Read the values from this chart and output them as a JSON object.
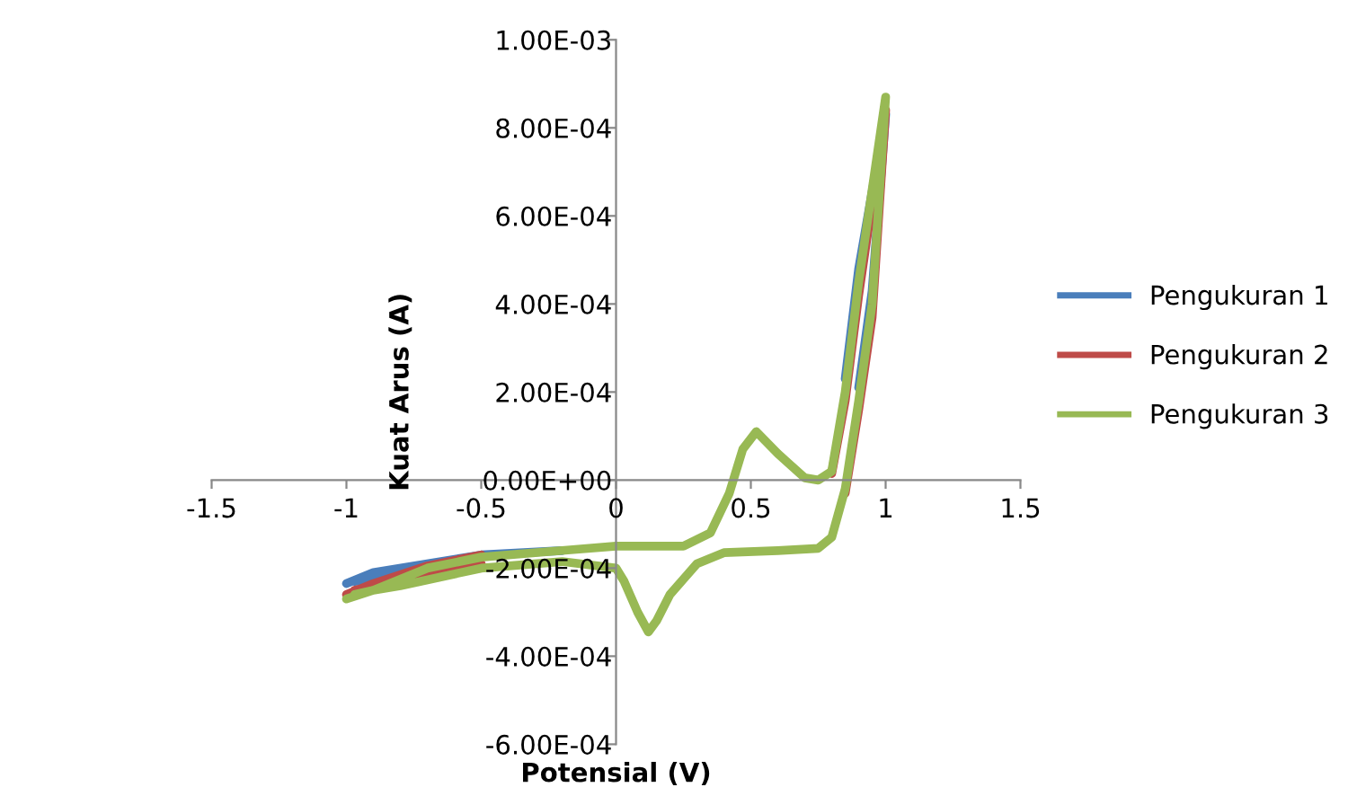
{
  "chart_data": {
    "type": "line",
    "xlabel": "Potensial (V)",
    "ylabel": "Kuat Arus (A)",
    "xlim": [
      -1.5,
      1.5
    ],
    "xticks": [
      -1.5,
      -1,
      -0.5,
      0,
      0.5,
      1,
      1.5
    ],
    "ylim": [
      -0.0006,
      0.001
    ],
    "yticks": [
      {
        "value": -0.0006,
        "label": "-6.00E-04"
      },
      {
        "value": -0.0004,
        "label": "-4.00E-04"
      },
      {
        "value": -0.0002,
        "label": "-2.00E-04"
      },
      {
        "value": 0,
        "label": "0.00E+00"
      },
      {
        "value": 0.0002,
        "label": "2.00E-04"
      },
      {
        "value": 0.0004,
        "label": "4.00E-04"
      },
      {
        "value": 0.0006,
        "label": "6.00E-04"
      },
      {
        "value": 0.0008,
        "label": "8.00E-04"
      },
      {
        "value": 0.001,
        "label": "1.00E-03"
      }
    ],
    "grid": false,
    "legend": "right",
    "marker": "none",
    "line_style": "solid",
    "series": [
      {
        "name": "Pengukuran 1",
        "color": "#4a7ebb",
        "x": [
          -1.0,
          -0.9,
          -0.7,
          -0.5,
          -0.2,
          0,
          0.25,
          0.35,
          0.42,
          0.47,
          0.52,
          0.6,
          0.7,
          0.75,
          0.8,
          0.85,
          0.9,
          1.0,
          0.95,
          0.9,
          0.85,
          0.8,
          0.75,
          0.6,
          0.4,
          0.3,
          0.2,
          0.15,
          0.12,
          0.08,
          0.03,
          0,
          -0.2,
          -0.5,
          -0.8,
          -0.9,
          -0.97
        ],
        "values": [
          -0.000235,
          -0.00021,
          -0.00019,
          -0.00017,
          -0.00016,
          null,
          null,
          null,
          null,
          null,
          null,
          null,
          null,
          null,
          null,
          0.00023,
          0.00048,
          0.00083,
          0.00043,
          0.00021,
          null,
          null,
          null,
          null,
          null,
          null,
          null,
          null,
          null,
          null,
          null,
          null,
          null,
          null,
          -0.00022,
          -0.000225,
          -0.00023
        ]
      },
      {
        "name": "Pengukuran 2",
        "color": "#be4b48",
        "x": [
          -1.0,
          -0.9,
          -0.7,
          -0.5,
          -0.2,
          0,
          0.25,
          0.35,
          0.42,
          0.47,
          0.52,
          0.6,
          0.7,
          0.75,
          0.8,
          0.85,
          0.9,
          1.0,
          0.95,
          0.9,
          0.85,
          0.8,
          0.75,
          0.6,
          0.4,
          0.3,
          0.2,
          0.15,
          0.12,
          0.08,
          0.03,
          0,
          -0.2,
          -0.5,
          -0.8,
          -0.9,
          -0.97
        ],
        "values": [
          -0.00026,
          -0.000235,
          -0.000195,
          -0.00017,
          null,
          null,
          null,
          null,
          null,
          null,
          null,
          null,
          null,
          null,
          1.5e-05,
          0.00018,
          0.00042,
          0.00084,
          0.00037,
          0.00016,
          -3e-05,
          null,
          null,
          null,
          null,
          null,
          null,
          null,
          null,
          null,
          null,
          null,
          null,
          -0.00019,
          -0.00023,
          -0.00024,
          -0.00025
        ]
      },
      {
        "name": "Pengukuran 3",
        "color": "#98b954",
        "x": [
          -1.0,
          -0.9,
          -0.7,
          -0.5,
          -0.2,
          0,
          0.25,
          0.35,
          0.42,
          0.47,
          0.52,
          0.6,
          0.7,
          0.75,
          0.8,
          0.85,
          0.9,
          1.0,
          0.95,
          0.9,
          0.85,
          0.8,
          0.75,
          0.6,
          0.4,
          0.3,
          0.2,
          0.15,
          0.12,
          0.08,
          0.03,
          0,
          -0.2,
          -0.5,
          -0.8,
          -0.9,
          -0.97
        ],
        "values": [
          -0.00027,
          -0.00025,
          -0.0002,
          -0.000175,
          -0.00016,
          -0.00015,
          -0.00015,
          -0.00012,
          -3e-05,
          7e-05,
          0.00011,
          6e-05,
          5e-06,
          0.0,
          2e-05,
          0.0002,
          0.00045,
          0.00087,
          0.0004,
          0.00018,
          -2e-05,
          -0.00013,
          -0.000155,
          -0.00016,
          -0.000165,
          -0.00019,
          -0.00026,
          -0.00032,
          -0.000345,
          -0.0003,
          -0.00023,
          -0.0002,
          -0.000185,
          -0.0002,
          -0.00024,
          -0.00025,
          -0.00026
        ]
      }
    ]
  }
}
